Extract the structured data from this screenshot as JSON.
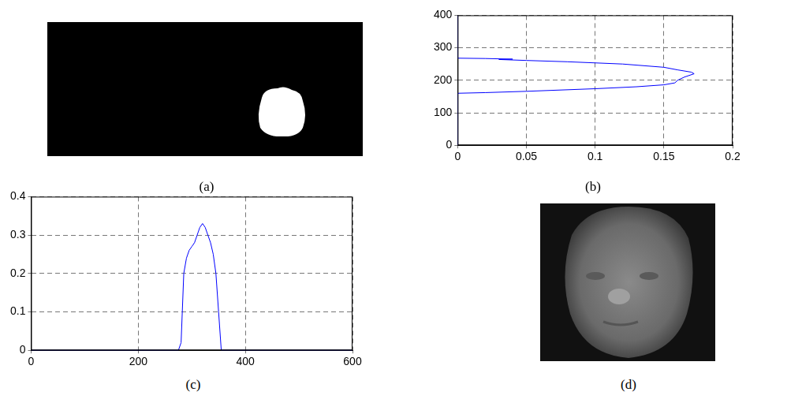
{
  "chart_data": [
    {
      "type": "line",
      "caption": "(b)",
      "color": "#0000ff",
      "grid": true,
      "x": [
        0,
        0,
        0.02,
        0.05,
        0.1,
        0.13,
        0.15,
        0.158,
        0.16,
        0.165,
        0.172,
        0.17,
        0.16,
        0.15,
        0.12,
        0.08,
        0.05,
        0.03,
        0.04,
        0.02,
        0,
        0
      ],
      "values": [
        0,
        160,
        162,
        166,
        174,
        180,
        186,
        192,
        200,
        210,
        220,
        225,
        232,
        240,
        250,
        257,
        261,
        264,
        265,
        267,
        268,
        400
      ],
      "xlim": [
        0,
        0.2
      ],
      "xticks": [
        0,
        0.05,
        0.1,
        0.15,
        0.2
      ],
      "ylim": [
        0,
        400
      ],
      "yticks": [
        0,
        100,
        200,
        300,
        400
      ]
    },
    {
      "type": "line",
      "caption": "(c)",
      "color": "#0000ff",
      "grid": true,
      "x": [
        0,
        275,
        280,
        285,
        290,
        295,
        300,
        305,
        310,
        315,
        320,
        325,
        330,
        335,
        340,
        345,
        350,
        355,
        360,
        600
      ],
      "values": [
        0,
        0,
        0.02,
        0.2,
        0.24,
        0.26,
        0.27,
        0.28,
        0.3,
        0.32,
        0.33,
        0.32,
        0.3,
        0.28,
        0.25,
        0.2,
        0.1,
        0,
        0,
        0
      ],
      "xlim": [
        0,
        600
      ],
      "xticks": [
        0,
        200,
        400,
        600
      ],
      "ylim": [
        0,
        0.4
      ],
      "yticks": [
        0,
        0.1,
        0.2,
        0.3,
        0.4
      ]
    }
  ],
  "images": [
    {
      "caption": "(a)"
    },
    {
      "caption": "(d)"
    }
  ]
}
